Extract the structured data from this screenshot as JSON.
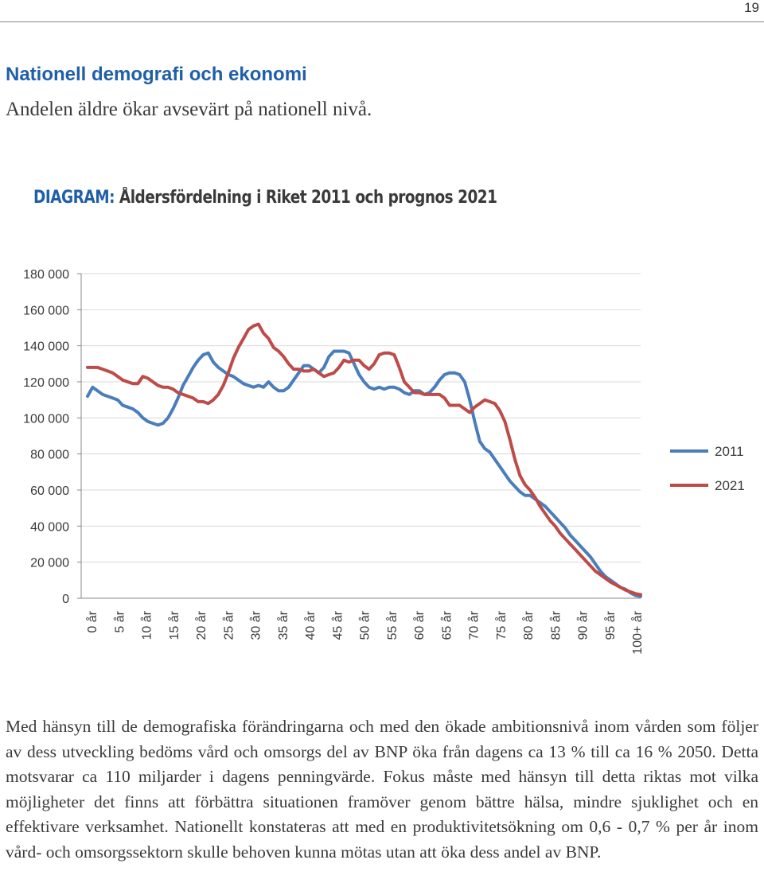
{
  "page": {
    "number": "19",
    "section_title": "Nationell demografi och ekonomi",
    "section_lead": "Andelen äldre ökar avsevärt på nationell nivå.",
    "diagram_label": "DIAGRAM:",
    "diagram_title": "Åldersfördelning i Riket 2011 och prognos 2021",
    "body_text": "Med hänsyn till de demografiska förändringarna och med den ökade ambitionsnivå inom vården som följer av dess utveckling bedöms vård och omsorgs del av BNP öka från dagens ca 13 % till ca 16 % 2050. Detta motsvarar ca 110 miljarder i dagens penningvärde. Fokus måste med hänsyn till detta riktas mot vilka möjligheter det finns att förbättra situationen framöver genom bättre hälsa, mindre sjuklighet och en effektivare verksamhet. Nationellt konstateras att med en produktivitetsökning om 0,6 - 0,7 % per år inom vård- och omsorgssektorn skulle behoven kunna mötas utan att öka dess andel av BNP."
  },
  "chart_data": {
    "type": "line",
    "title": "Åldersfördelning i Riket 2011 och prognos 2021",
    "xlabel": "",
    "ylabel": "",
    "ylim": [
      0,
      180000
    ],
    "y_ticks": [
      0,
      20000,
      40000,
      60000,
      80000,
      100000,
      120000,
      140000,
      160000,
      180000
    ],
    "y_tick_labels": [
      "0",
      "20 000",
      "40 000",
      "60 000",
      "80 000",
      "100 000",
      "120 000",
      "140 000",
      "160 000",
      "180 000"
    ],
    "x_tick_labels": [
      "0 år",
      "5 år",
      "10 år",
      "15 år",
      "20 år",
      "25 år",
      "30 år",
      "35 år",
      "40 år",
      "45 år",
      "50 år",
      "55 år",
      "60 år",
      "65 år",
      "70 år",
      "75 år",
      "80 år",
      "85 år",
      "90 år",
      "95 år",
      "100+ år"
    ],
    "grid": true,
    "legend_position": "right",
    "series": [
      {
        "name": "2011",
        "color": "#4a7ebb",
        "values": [
          112000,
          117000,
          115000,
          113000,
          112000,
          111000,
          110000,
          107000,
          106000,
          105000,
          103000,
          100000,
          98000,
          97000,
          96000,
          97000,
          100000,
          105000,
          111000,
          118000,
          123000,
          128000,
          132000,
          135000,
          136000,
          131000,
          128000,
          126000,
          124000,
          123000,
          121000,
          119000,
          118000,
          117000,
          118000,
          117000,
          120000,
          117000,
          115000,
          115000,
          117000,
          121000,
          125000,
          129000,
          129000,
          127000,
          125000,
          128000,
          134000,
          137000,
          137000,
          137000,
          136000,
          130000,
          124000,
          120000,
          117000,
          116000,
          117000,
          116000,
          117000,
          117000,
          116000,
          114000,
          113000,
          115000,
          115000,
          113000,
          114000,
          117000,
          121000,
          124000,
          125000,
          125000,
          124000,
          120000,
          110000,
          98000,
          87000,
          83000,
          81000,
          77000,
          73000,
          69000,
          65000,
          62000,
          59000,
          57000,
          57000,
          55000,
          53000,
          51000,
          48000,
          45000,
          42000,
          39000,
          35000,
          32000,
          29000,
          26000,
          23000,
          19000,
          15000,
          12000,
          10000,
          8000,
          6000,
          5000,
          3000,
          1500,
          1000
        ]
      },
      {
        "name": "2021",
        "color": "#be4b48",
        "values": [
          128000,
          128000,
          128000,
          127000,
          126000,
          125000,
          123000,
          121000,
          120000,
          119000,
          119000,
          123000,
          122000,
          120000,
          118000,
          117000,
          117000,
          116000,
          114000,
          113000,
          112000,
          111000,
          109000,
          109000,
          108000,
          110000,
          113000,
          118000,
          125000,
          133000,
          139000,
          144000,
          149000,
          151000,
          152000,
          147000,
          144000,
          139000,
          137000,
          134000,
          130000,
          127000,
          127000,
          126000,
          126000,
          127000,
          125000,
          123000,
          124000,
          125000,
          128000,
          132000,
          131000,
          132000,
          132000,
          129000,
          127000,
          130000,
          135000,
          136000,
          136000,
          135000,
          128000,
          120000,
          117000,
          114000,
          114000,
          113000,
          113000,
          113000,
          113000,
          111000,
          107000,
          107000,
          107000,
          105000,
          103000,
          106000,
          108000,
          110000,
          109000,
          108000,
          104000,
          98000,
          88000,
          77000,
          68000,
          63000,
          60000,
          56000,
          51000,
          47000,
          43000,
          40000,
          36000,
          33000,
          30000,
          27000,
          24000,
          21000,
          18000,
          15000,
          13000,
          11000,
          9000,
          7500,
          6000,
          4500,
          3500,
          2500,
          2000
        ]
      }
    ]
  }
}
